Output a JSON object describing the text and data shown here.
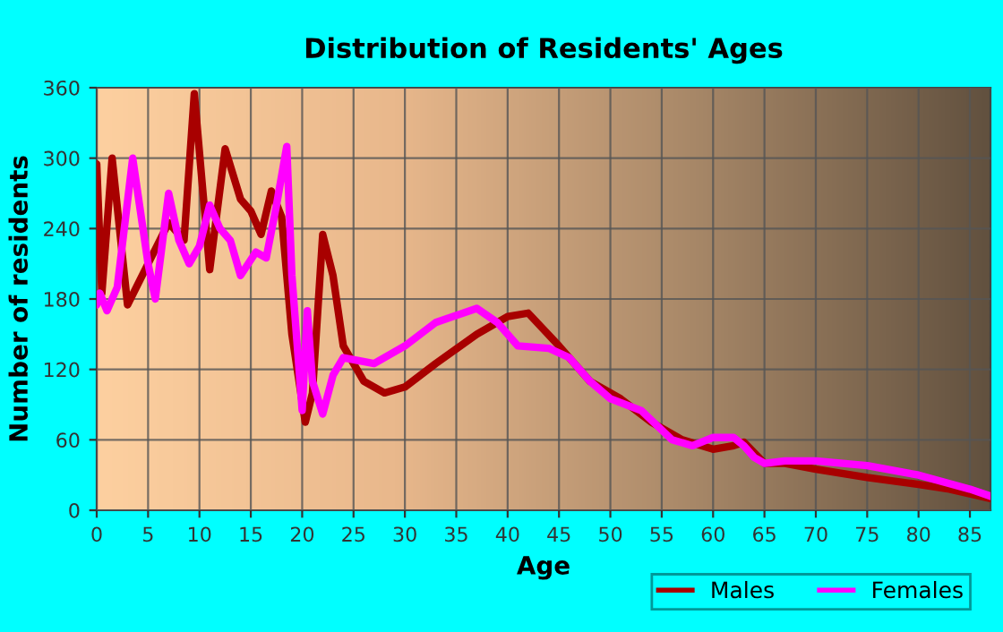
{
  "chart_data": {
    "type": "line",
    "title": "Distribution of Residents' Ages",
    "xlabel": "Age",
    "ylabel": "Number of residents",
    "xlim": [
      0,
      87
    ],
    "xticks": [
      0,
      5,
      10,
      15,
      20,
      25,
      30,
      35,
      40,
      45,
      50,
      55,
      60,
      65,
      70,
      75,
      80,
      85
    ],
    "ylim": [
      0,
      360
    ],
    "yticks": [
      0,
      60,
      120,
      180,
      240,
      300,
      360
    ],
    "grid": true,
    "legend": "bottom right",
    "marker": "none",
    "line_style": "solid",
    "series": [
      {
        "name": "Males",
        "color": "#a80000",
        "x": [
          0,
          0.5,
          1.5,
          3,
          5,
          7,
          8.5,
          9.5,
          11,
          12.5,
          14,
          15,
          16,
          17,
          18,
          19,
          20.3,
          21,
          22,
          23,
          24,
          26,
          28,
          30,
          33,
          37,
          40,
          42,
          45,
          48,
          51,
          54,
          57,
          60,
          62,
          63,
          65,
          67,
          70,
          75,
          80,
          83,
          87
        ],
        "values": [
          295,
          185,
          300,
          175,
          210,
          245,
          230,
          355,
          205,
          308,
          265,
          255,
          235,
          272,
          250,
          150,
          75,
          100,
          235,
          200,
          140,
          110,
          100,
          105,
          125,
          150,
          165,
          168,
          140,
          110,
          95,
          75,
          60,
          52,
          55,
          58,
          40,
          40,
          35,
          28,
          22,
          18,
          10
        ]
      },
      {
        "name": "Females",
        "color": "#ff00ff",
        "x": [
          0,
          0.3,
          1,
          2,
          3.5,
          5,
          5.7,
          7,
          8,
          9,
          10,
          11,
          12,
          13,
          14,
          15.5,
          16.5,
          17.5,
          18.5,
          19,
          20,
          20.5,
          21,
          22,
          23,
          24,
          27,
          30,
          33,
          37,
          39,
          41,
          44,
          46,
          48,
          50,
          53,
          56,
          58,
          60,
          62,
          63,
          64,
          65,
          67,
          70,
          75,
          80,
          85,
          87
        ],
        "values": [
          175,
          185,
          170,
          190,
          300,
          210,
          180,
          270,
          230,
          210,
          225,
          260,
          240,
          230,
          200,
          220,
          215,
          260,
          310,
          200,
          85,
          170,
          110,
          82,
          115,
          130,
          125,
          140,
          160,
          172,
          160,
          140,
          138,
          130,
          110,
          95,
          85,
          60,
          55,
          62,
          62,
          55,
          45,
          40,
          42,
          42,
          38,
          30,
          18,
          12
        ]
      }
    ]
  }
}
